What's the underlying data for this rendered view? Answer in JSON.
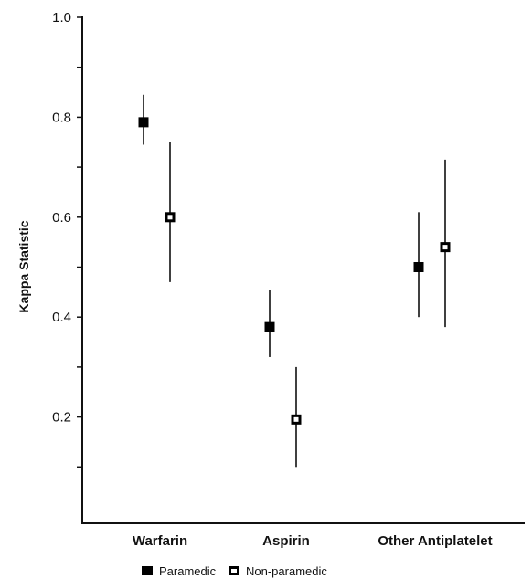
{
  "chart_data": {
    "type": "scatter",
    "title": "",
    "xlabel": "",
    "ylabel": "Kappa Statistic",
    "categories": [
      "Warfarin",
      "Aspirin",
      "Other Antiplatelet"
    ],
    "ylim": [
      0,
      1.0
    ],
    "yticks_major": [
      0.2,
      0.4,
      0.6,
      0.8,
      1.0
    ],
    "ytick_labels": [
      "0.2",
      "0.4",
      "0.6",
      "0.8",
      "1.0"
    ],
    "yticks_minor": [
      0.1,
      0.3,
      0.5,
      0.7,
      0.9
    ],
    "grid": false,
    "legend_position": "bottom",
    "series": [
      {
        "name": "Paramedic",
        "marker": "filled-square",
        "color": "#000000",
        "values": [
          0.79,
          0.38,
          0.5
        ],
        "ci_low": [
          0.745,
          0.32,
          0.4
        ],
        "ci_high": [
          0.845,
          0.455,
          0.61
        ]
      },
      {
        "name": "Non-paramedic",
        "marker": "open-square",
        "color": "#000000",
        "values": [
          0.6,
          0.195,
          0.54
        ],
        "ci_low": [
          0.47,
          0.1,
          0.38
        ],
        "ci_high": [
          0.75,
          0.3,
          0.715
        ]
      }
    ]
  }
}
